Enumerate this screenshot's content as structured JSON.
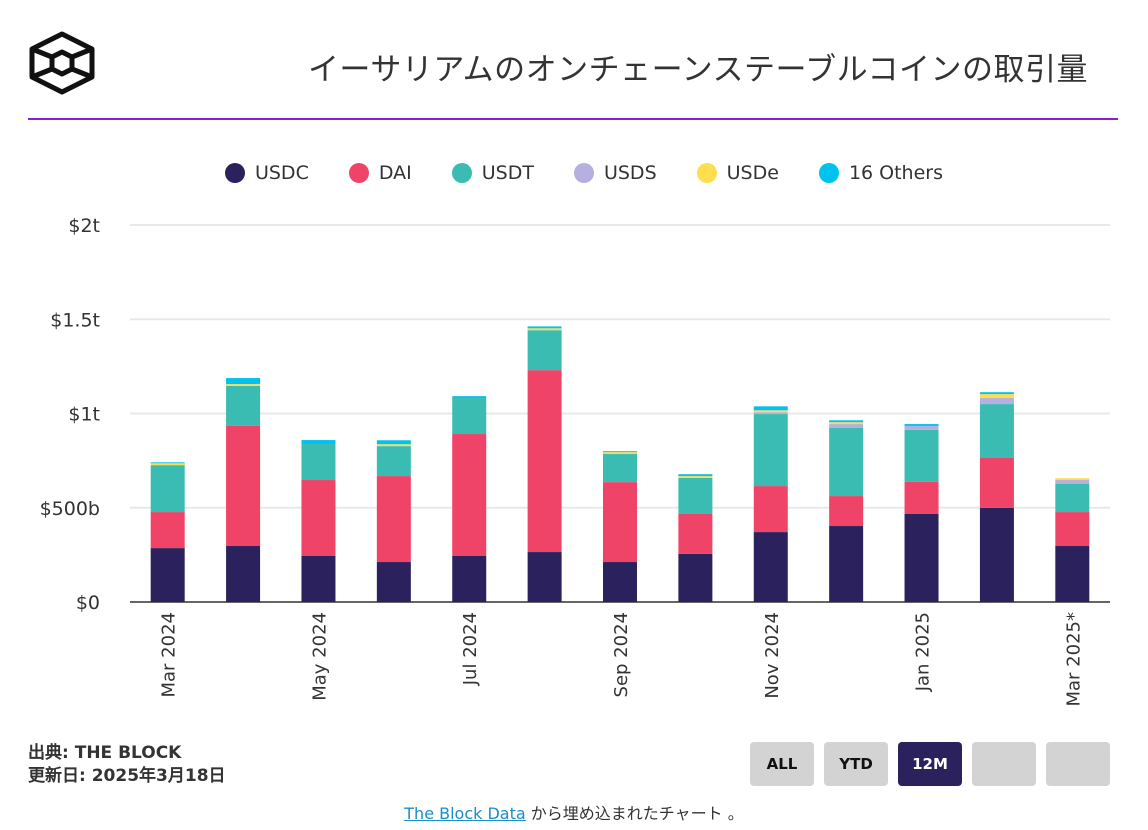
{
  "header": {
    "title": "イーサリアムのオンチェーンステーブルコインの取引量"
  },
  "chart_data": {
    "type": "bar",
    "stacked": true,
    "title": "イーサリアムのオンチェーンステーブルコインの取引量",
    "categories": [
      "Mar 2024",
      "",
      "May 2024",
      "",
      "Jul 2024",
      "",
      "Sep 2024",
      "",
      "Nov 2024",
      "",
      "Jan 2025",
      "",
      "Mar 2025*"
    ],
    "ylim": [
      0,
      2000
    ],
    "yticks": [
      0,
      500,
      1000,
      1500,
      2000
    ],
    "ytick_labels": [
      "$0",
      "$500b",
      "$1t",
      "$1.5t",
      "$2t"
    ],
    "legend_position": "top-center",
    "grid": true,
    "series": [
      {
        "name": "USDC",
        "color": "#2b215d",
        "values": [
          286,
          297,
          244,
          212,
          244,
          265,
          212,
          255,
          371,
          403,
          467,
          499,
          297
        ]
      },
      {
        "name": "DAI",
        "color": "#ef4367",
        "values": [
          191,
          637,
          403,
          456,
          647,
          965,
          424,
          212,
          244,
          159,
          170,
          265,
          180
        ]
      },
      {
        "name": "USDT",
        "color": "#3bbcb2",
        "values": [
          249,
          212,
          191,
          159,
          191,
          212,
          149,
          191,
          382,
          361,
          276,
          286,
          149
        ]
      },
      {
        "name": "USDS",
        "color": "#b5b0e0",
        "values": [
          0,
          0,
          0,
          0,
          0,
          0,
          0,
          0,
          10,
          21,
          21,
          32,
          21
        ]
      },
      {
        "name": "USDe",
        "color": "#fedd4f",
        "values": [
          10,
          10,
          0,
          10,
          0,
          10,
          10,
          10,
          10,
          10,
          0,
          21,
          10
        ]
      },
      {
        "name": "16 Others",
        "color": "#00c2ee",
        "values": [
          5,
          32,
          21,
          21,
          10,
          10,
          5,
          10,
          21,
          10,
          10,
          10,
          0
        ]
      }
    ]
  },
  "footer": {
    "source": "出典: THE BLOCK",
    "updated": "更新日: 2025年3月18日",
    "link": "The Block Data",
    "embed_text": " から埋め込まれたチャート 。"
  },
  "buttons": [
    "ALL",
    "YTD",
    "12M",
    "",
    ""
  ],
  "active_button": "12M"
}
